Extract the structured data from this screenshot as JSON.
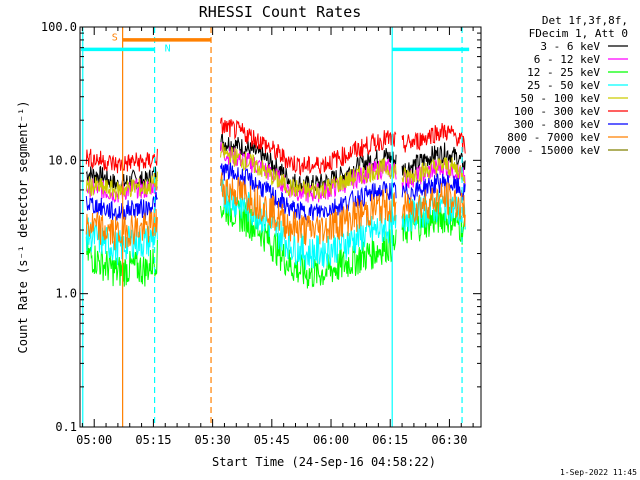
{
  "chart_data": {
    "type": "line",
    "title": "RHESSI Count Rates",
    "xlabel": "Start Time (24-Sep-16 04:58:22)",
    "ylabel": "Count Rate (s⁻¹ detector segment⁻¹)",
    "yscale": "log",
    "ylim": [
      0.1,
      100.0
    ],
    "xlim_minutes": [
      -3.6,
      98.0
    ],
    "x_unit": "minutes after 05:00 UT",
    "x_ticks": [
      {
        "label": "05:00",
        "value": 0
      },
      {
        "label": "05:15",
        "value": 15
      },
      {
        "label": "05:30",
        "value": 30
      },
      {
        "label": "05:45",
        "value": 45
      },
      {
        "label": "06:00",
        "value": 60
      },
      {
        "label": "06:15",
        "value": 75
      },
      {
        "label": "06:30",
        "value": 90
      }
    ],
    "y_ticks": [
      {
        "label": "0.1",
        "value": 0.1
      },
      {
        "label": "1.0",
        "value": 1.0
      },
      {
        "label": "10.0",
        "value": 10.0
      },
      {
        "label": "100.0",
        "value": 100.0
      }
    ],
    "legend_header": [
      "Det 1f,3f,8f,",
      "FDecim 1, Att 0"
    ],
    "legend_placement": "right",
    "series": [
      {
        "name": "3 - 6 keV",
        "color": "#000000",
        "segments": [
          {
            "x": [
              -2,
              2,
              6,
              10,
              13,
              16
            ],
            "y": [
              8.0,
              7.6,
              6.5,
              7.2,
              7.0,
              8.2
            ]
          },
          {
            "x": [
              32,
              34,
              38,
              42,
              46,
              50,
              54,
              58,
              62,
              66,
              70,
              74,
              76.5
            ],
            "y": [
              14.0,
              13.5,
              12.5,
              11.0,
              9.0,
              7.0,
              6.5,
              6.8,
              7.5,
              8.8,
              10.0,
              10.8,
              10.0
            ]
          },
          {
            "x": [
              78,
              82,
              86,
              89,
              92,
              94
            ],
            "y": [
              8.5,
              9.5,
              11.0,
              11.5,
              10.5,
              9.0
            ]
          }
        ]
      },
      {
        "name": "6 - 12 keV",
        "color": "#ff00ff",
        "segments": [
          {
            "x": [
              -2,
              2,
              6,
              10,
              13,
              16
            ],
            "y": [
              6.3,
              6.0,
              5.6,
              6.2,
              6.0,
              6.8
            ]
          },
          {
            "x": [
              32,
              34,
              38,
              42,
              46,
              50,
              54,
              58,
              62,
              66,
              70,
              74,
              76.5
            ],
            "y": [
              12.0,
              11.0,
              10.0,
              9.0,
              7.5,
              6.0,
              5.6,
              5.8,
              6.4,
              7.3,
              8.2,
              8.8,
              8.3
            ]
          },
          {
            "x": [
              78,
              82,
              86,
              89,
              92,
              94
            ],
            "y": [
              7.0,
              7.6,
              8.6,
              9.0,
              8.3,
              7.3
            ]
          }
        ]
      },
      {
        "name": "12 - 25 keV",
        "color": "#00ff00",
        "segments": [
          {
            "x": [
              -2,
              2,
              6,
              10,
              13,
              16
            ],
            "y": [
              2.0,
              1.7,
              1.45,
              1.6,
              1.5,
              1.9
            ]
          },
          {
            "x": [
              32,
              34,
              38,
              42,
              46,
              50,
              54,
              58,
              62,
              66,
              70,
              74,
              76.5
            ],
            "y": [
              4.5,
              4.3,
              3.7,
              3.0,
              2.2,
              1.6,
              1.4,
              1.45,
              1.6,
              1.8,
              2.0,
              2.3,
              2.3
            ]
          },
          {
            "x": [
              78,
              82,
              86,
              89,
              92,
              94
            ],
            "y": [
              3.0,
              3.3,
              3.6,
              3.8,
              3.4,
              2.9
            ]
          }
        ]
      },
      {
        "name": "25 - 50 keV",
        "color": "#00ffff",
        "segments": [
          {
            "x": [
              -2,
              2,
              6,
              10,
              13,
              16
            ],
            "y": [
              2.8,
              2.5,
              2.2,
              2.5,
              2.4,
              2.8
            ]
          },
          {
            "x": [
              32,
              34,
              38,
              42,
              46,
              50,
              54,
              58,
              62,
              66,
              70,
              74,
              76.5
            ],
            "y": [
              5.5,
              5.2,
              4.6,
              3.9,
              3.0,
              2.3,
              2.0,
              2.1,
              2.3,
              2.6,
              2.9,
              3.2,
              3.1
            ]
          },
          {
            "x": [
              78,
              82,
              86,
              89,
              92,
              94
            ],
            "y": [
              3.8,
              4.0,
              4.4,
              4.6,
              4.2,
              3.6
            ]
          }
        ]
      },
      {
        "name": "50 - 100 keV",
        "color": "#cccc00",
        "segments": [
          {
            "x": [
              -2,
              2,
              6,
              10,
              13,
              16
            ],
            "y": [
              6.5,
              6.2,
              5.9,
              6.3,
              6.2,
              7.0
            ]
          },
          {
            "x": [
              32,
              34,
              38,
              42,
              46,
              50,
              54,
              58,
              62,
              66,
              70,
              74,
              76.5
            ],
            "y": [
              11.5,
              11.0,
              10.0,
              8.8,
              7.2,
              6.2,
              5.9,
              6.1,
              6.7,
              7.5,
              8.2,
              8.8,
              8.4
            ]
          },
          {
            "x": [
              78,
              82,
              86,
              89,
              92,
              94
            ],
            "y": [
              7.4,
              8.0,
              8.8,
              9.2,
              8.6,
              7.8
            ]
          }
        ]
      },
      {
        "name": "100 - 300 keV",
        "color": "#ff0000",
        "segments": [
          {
            "x": [
              -2,
              2,
              6,
              10,
              13,
              16
            ],
            "y": [
              10.5,
              10.0,
              9.2,
              9.8,
              9.6,
              10.6
            ]
          },
          {
            "x": [
              32,
              34,
              38,
              42,
              46,
              50,
              54,
              58,
              62,
              66,
              70,
              74,
              76.5
            ],
            "y": [
              18.0,
              17.5,
              16.0,
              14.0,
              11.5,
              9.6,
              9.0,
              9.4,
              10.4,
              11.8,
              13.2,
              14.5,
              14.0
            ]
          },
          {
            "x": [
              78,
              82,
              86,
              89,
              92,
              94
            ],
            "y": [
              13.0,
              14.0,
              16.0,
              16.5,
              15.0,
              12.5
            ]
          }
        ]
      },
      {
        "name": "300 - 800 keV",
        "color": "#0000ff",
        "segments": [
          {
            "x": [
              -2,
              2,
              6,
              10,
              13,
              16
            ],
            "y": [
              4.8,
              4.4,
              4.0,
              4.4,
              4.3,
              5.0
            ]
          },
          {
            "x": [
              32,
              34,
              38,
              42,
              46,
              50,
              54,
              58,
              62,
              66,
              70,
              74,
              76.5
            ],
            "y": [
              8.5,
              8.2,
              7.4,
              6.4,
              5.2,
              4.3,
              4.0,
              4.2,
              4.6,
              5.1,
              5.6,
              6.0,
              5.8
            ]
          },
          {
            "x": [
              78,
              82,
              86,
              89,
              92,
              94
            ],
            "y": [
              5.6,
              6.0,
              6.6,
              6.9,
              6.3,
              5.6
            ]
          }
        ]
      },
      {
        "name": "800 - 7000 keV",
        "color": "#ff8000",
        "segments": [
          {
            "x": [
              -2,
              2,
              6,
              10,
              13,
              16
            ],
            "y": [
              3.3,
              3.0,
              2.8,
              3.1,
              3.0,
              3.5
            ]
          },
          {
            "x": [
              32,
              34,
              38,
              42,
              46,
              50,
              54,
              58,
              62,
              66,
              70,
              74,
              76.5
            ],
            "y": [
              6.4,
              6.1,
              5.5,
              4.8,
              3.9,
              3.2,
              3.0,
              3.1,
              3.4,
              3.8,
              4.2,
              4.6,
              4.4
            ]
          },
          {
            "x": [
              78,
              82,
              86,
              89,
              92,
              94
            ],
            "y": [
              4.3,
              4.6,
              5.0,
              5.2,
              4.8,
              4.2
            ]
          }
        ]
      },
      {
        "name": "7000 - 15000 keV",
        "color": "#808000",
        "segments": []
      }
    ],
    "overlays": {
      "solid_vlines": [
        {
          "x": -2.9,
          "color": "#00ffff"
        },
        {
          "x": 7.2,
          "color": "#ff8000"
        },
        {
          "x": 75.5,
          "color": "#00ffff"
        }
      ],
      "dashed_vlines": [
        {
          "x": 15.3,
          "color": "#00ffff"
        },
        {
          "x": 29.6,
          "color": "#ff8000"
        },
        {
          "x": 93.2,
          "color": "#00ffff"
        }
      ],
      "hbars": [
        {
          "x0": -3.3,
          "x1": 15.3,
          "y": 68,
          "color": "#00ffff"
        },
        {
          "x0": 75.5,
          "x1": 95.0,
          "y": 68,
          "color": "#00ffff"
        },
        {
          "x0": 7.2,
          "x1": 29.6,
          "y": 80,
          "color": "#ff8000"
        }
      ],
      "flag_labels": [
        {
          "text": "S",
          "x": 5.2,
          "y": 85,
          "color": "#ff8000"
        },
        {
          "text": "N",
          "x": 18.6,
          "y": 70,
          "color": "#00ffff"
        }
      ]
    },
    "footer_timestamp": "1-Sep-2022 11:45"
  }
}
